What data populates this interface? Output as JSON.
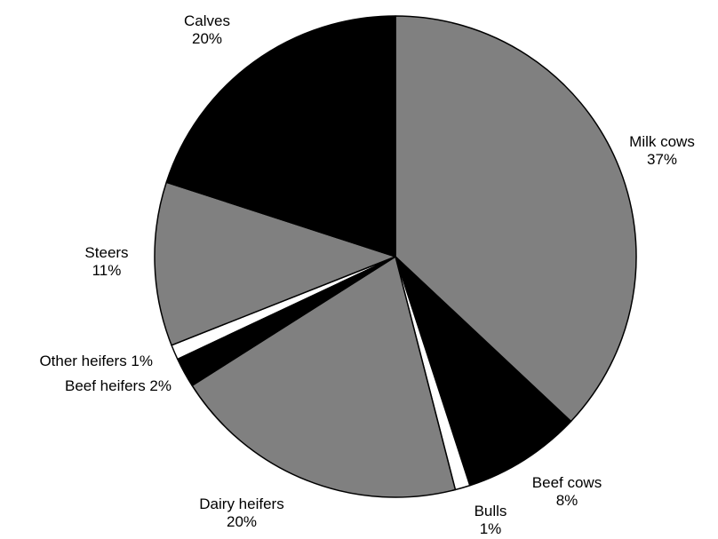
{
  "chart_data": {
    "type": "pie",
    "title": "",
    "start": "top",
    "direction": "clockwise",
    "slices": [
      {
        "label": "Milk cows",
        "value": 37,
        "display": "37%",
        "color": "#808080"
      },
      {
        "label": "Beef cows",
        "value": 8,
        "display": "8%",
        "color": "#000000"
      },
      {
        "label": "Bulls",
        "value": 1,
        "display": "1%",
        "color": "#ffffff"
      },
      {
        "label": "Dairy heifers",
        "value": 20,
        "display": "20%",
        "color": "#808080"
      },
      {
        "label": "Beef heifers",
        "value": 2,
        "display": "2%",
        "color": "#000000"
      },
      {
        "label": "Other heifers",
        "value": 1,
        "display": "1%",
        "color": "#ffffff"
      },
      {
        "label": "Steers",
        "value": 11,
        "display": "11%",
        "color": "#808080"
      },
      {
        "label": "Calves",
        "value": 20,
        "display": "20%",
        "color": "#000000"
      }
    ]
  }
}
